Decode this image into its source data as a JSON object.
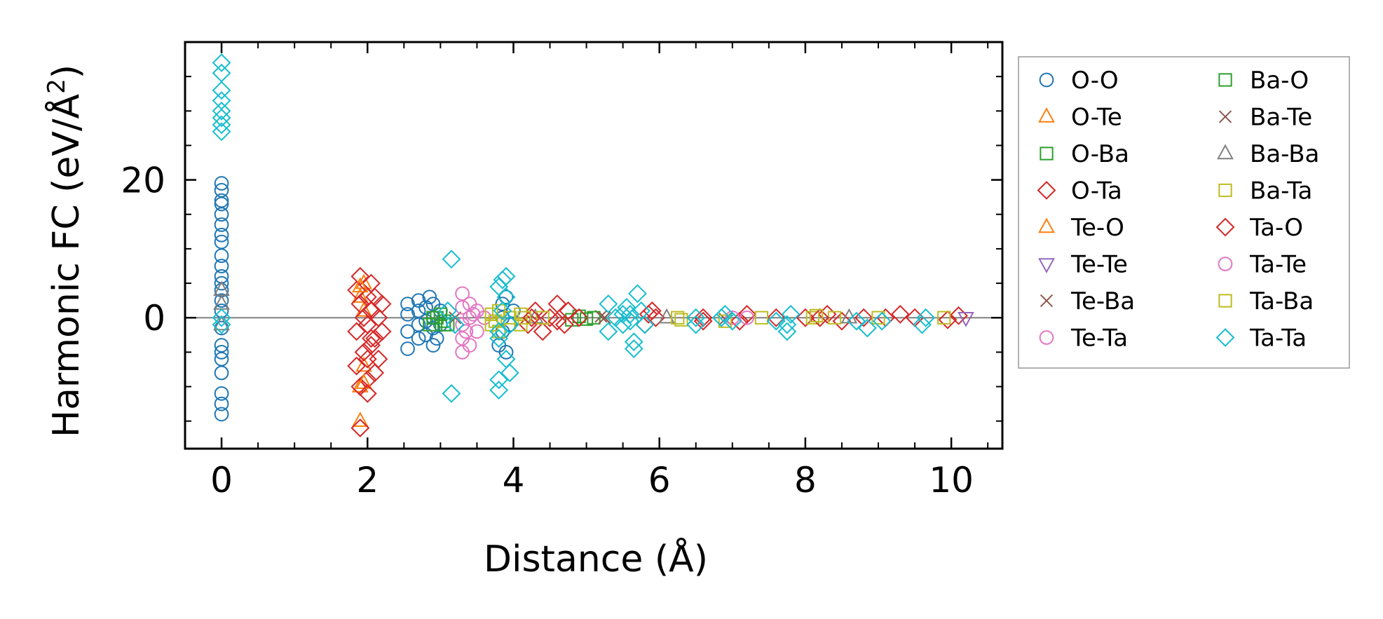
{
  "chart_data": {
    "type": "scatter",
    "title": "",
    "xlabel": "Distance (Å)",
    "ylabel_main": "Harmonic FC (eV/Å",
    "ylabel_sup": "2",
    "ylabel_close": ")",
    "xlim": [
      -0.5,
      10.7
    ],
    "ylim": [
      -19,
      40
    ],
    "xticks": [
      0,
      2,
      4,
      6,
      8,
      10
    ],
    "xtick_labels": [
      "0",
      "2",
      "4",
      "6",
      "8",
      "10"
    ],
    "yticks": [
      0,
      20
    ],
    "ytick_labels": [
      "0",
      "20"
    ],
    "x_minor_step": 0.5,
    "y_minor_step": 5,
    "zero_line": {
      "y": 0,
      "color": "#808080"
    },
    "legend_position": "outside-right",
    "series": [
      {
        "name": "O-O",
        "marker": "circle",
        "color": "#1f77b4",
        "points": [
          [
            0,
            -14
          ],
          [
            0,
            -12.5
          ],
          [
            0,
            -11
          ],
          [
            0,
            -8
          ],
          [
            0,
            -6
          ],
          [
            0,
            -5
          ],
          [
            0,
            -4
          ],
          [
            0,
            -1.5
          ],
          [
            0,
            1
          ],
          [
            0,
            2.5
          ],
          [
            0,
            4
          ],
          [
            0,
            5
          ],
          [
            0,
            6
          ],
          [
            0,
            7.5
          ],
          [
            0,
            9
          ],
          [
            0,
            11
          ],
          [
            0,
            12
          ],
          [
            0,
            13.5
          ],
          [
            0,
            15
          ],
          [
            0,
            16.5
          ],
          [
            0,
            17
          ],
          [
            0,
            18.5
          ],
          [
            0,
            19.5
          ],
          [
            2.55,
            -4.5
          ],
          [
            2.55,
            -2
          ],
          [
            2.55,
            0.5
          ],
          [
            2.55,
            2
          ],
          [
            2.7,
            -3
          ],
          [
            2.7,
            -1
          ],
          [
            2.7,
            1
          ],
          [
            2.7,
            2.5
          ],
          [
            2.8,
            -2.5
          ],
          [
            2.8,
            -0.5
          ],
          [
            2.8,
            1.5
          ],
          [
            2.85,
            3
          ],
          [
            2.9,
            -4
          ],
          [
            2.9,
            -1.5
          ],
          [
            2.9,
            0
          ],
          [
            2.9,
            2
          ],
          [
            2.95,
            -3
          ],
          [
            3.0,
            1
          ],
          [
            3.0,
            -1
          ],
          [
            3.8,
            -4
          ],
          [
            3.85,
            -2
          ],
          [
            3.85,
            0
          ],
          [
            3.85,
            2
          ],
          [
            3.9,
            -5
          ],
          [
            3.9,
            3
          ],
          [
            3.95,
            -1
          ],
          [
            4.0,
            1
          ]
        ]
      },
      {
        "name": "O-Te",
        "marker": "triangle-up",
        "color": "#ff7f0e",
        "points": [
          [
            1.9,
            -15
          ],
          [
            1.9,
            -10
          ],
          [
            1.95,
            -7
          ],
          [
            1.95,
            5
          ],
          [
            1.9,
            3
          ],
          [
            1.95,
            1
          ]
        ]
      },
      {
        "name": "O-Ba",
        "marker": "square",
        "color": "#2ca02c",
        "points": [
          [
            2.85,
            -1
          ],
          [
            2.95,
            0
          ],
          [
            3.05,
            -0.5
          ],
          [
            3.0,
            0.5
          ],
          [
            3.1,
            -1
          ],
          [
            4.8,
            -0.3
          ],
          [
            4.9,
            0.2
          ],
          [
            5.0,
            -0.2
          ]
        ]
      },
      {
        "name": "O-Ta",
        "marker": "diamond",
        "color": "#d62728",
        "points": [
          [
            1.9,
            -16
          ],
          [
            1.9,
            -10
          ],
          [
            1.85,
            -7
          ],
          [
            1.95,
            -5
          ],
          [
            1.85,
            -2
          ],
          [
            1.95,
            0
          ],
          [
            1.9,
            2
          ],
          [
            1.85,
            4
          ],
          [
            1.9,
            6
          ],
          [
            2.0,
            -9
          ],
          [
            2.0,
            -6
          ],
          [
            2.05,
            -4
          ],
          [
            2.0,
            -1
          ],
          [
            2.05,
            1
          ],
          [
            2.0,
            3
          ],
          [
            2.05,
            5
          ],
          [
            2.1,
            -3
          ],
          [
            2.15,
            0
          ],
          [
            2.15,
            -6
          ],
          [
            2.2,
            2
          ],
          [
            2.1,
            -8
          ],
          [
            2.2,
            -2
          ],
          [
            4.2,
            -1
          ],
          [
            4.3,
            1
          ],
          [
            4.4,
            -2
          ],
          [
            4.5,
            0
          ],
          [
            4.6,
            2
          ],
          [
            4.7,
            -1
          ],
          [
            4.75,
            1
          ],
          [
            4.9,
            0
          ],
          [
            5.8,
            -1
          ],
          [
            5.9,
            1
          ],
          [
            5.95,
            0
          ],
          [
            6.6,
            0
          ],
          [
            7.1,
            -0.5
          ],
          [
            7.2,
            0.5
          ],
          [
            7.6,
            0
          ],
          [
            8.0,
            0
          ],
          [
            8.3,
            0.5
          ],
          [
            8.5,
            -0.5
          ],
          [
            8.8,
            0
          ],
          [
            9.1,
            0
          ],
          [
            9.3,
            0.5
          ],
          [
            9.5,
            0
          ],
          [
            9.95,
            -0.3
          ],
          [
            10.1,
            0.3
          ]
        ]
      },
      {
        "name": "Te-O",
        "marker": "triangle-up",
        "color": "#ff7f0e",
        "points": [
          [
            1.95,
            -9.5
          ],
          [
            1.9,
            4.5
          ]
        ]
      },
      {
        "name": "Te-Te",
        "marker": "triangle-down",
        "color": "#9467bd",
        "points": [
          [
            10.2,
            0
          ]
        ]
      },
      {
        "name": "Te-Ba",
        "marker": "x",
        "color": "#8c564b",
        "points": [
          [
            3.2,
            0
          ],
          [
            5.2,
            0.2
          ],
          [
            6.9,
            -0.2
          ]
        ]
      },
      {
        "name": "Te-Ta",
        "marker": "circle",
        "color": "#e377c2",
        "points": [
          [
            3.3,
            -5
          ],
          [
            3.3,
            -3
          ],
          [
            3.3,
            -1
          ],
          [
            3.3,
            1.5
          ],
          [
            3.3,
            3.5
          ],
          [
            3.4,
            -4
          ],
          [
            3.4,
            0
          ],
          [
            3.4,
            2
          ],
          [
            3.5,
            -2
          ],
          [
            3.5,
            1
          ],
          [
            3.6,
            0
          ],
          [
            7.0,
            0
          ],
          [
            7.2,
            0
          ]
        ]
      },
      {
        "name": "Ba-O",
        "marker": "square",
        "color": "#2ca02c",
        "points": [
          [
            2.9,
            0
          ],
          [
            3.05,
            -1
          ],
          [
            5.1,
            0
          ]
        ]
      },
      {
        "name": "Ba-Te",
        "marker": "x",
        "color": "#8c564b",
        "points": [
          [
            5.25,
            0
          ]
        ]
      },
      {
        "name": "Ba-Ba",
        "marker": "triangle-up",
        "color": "#7f7f7f",
        "points": [
          [
            0,
            4
          ],
          [
            0,
            2
          ],
          [
            0,
            -1
          ],
          [
            4.3,
            0
          ],
          [
            6.1,
            0
          ],
          [
            8.6,
            0
          ]
        ]
      },
      {
        "name": "Ba-Ta",
        "marker": "square",
        "color": "#bcbd22",
        "points": [
          [
            3.7,
            -1
          ],
          [
            3.7,
            0.5
          ],
          [
            3.8,
            -2
          ],
          [
            3.8,
            1
          ],
          [
            3.95,
            0
          ],
          [
            4.1,
            -1
          ],
          [
            4.1,
            0.5
          ],
          [
            4.4,
            0
          ],
          [
            6.25,
            0
          ],
          [
            6.9,
            -0.5
          ],
          [
            7.4,
            0
          ],
          [
            8.1,
            0
          ],
          [
            8.4,
            0
          ],
          [
            9.0,
            0
          ],
          [
            9.9,
            0
          ]
        ]
      },
      {
        "name": "Ta-O",
        "marker": "diamond",
        "color": "#d62728",
        "points": [
          [
            2.0,
            -11
          ],
          [
            2.05,
            -3
          ],
          [
            2.1,
            3
          ],
          [
            4.25,
            0
          ],
          [
            4.6,
            -0.5
          ],
          [
            5.85,
            0.5
          ],
          [
            6.6,
            -0.5
          ],
          [
            8.2,
            0
          ]
        ]
      },
      {
        "name": "Ta-Te",
        "marker": "circle",
        "color": "#e377c2",
        "points": [
          [
            3.35,
            -2
          ],
          [
            3.45,
            0.5
          ]
        ]
      },
      {
        "name": "Ta-Ba",
        "marker": "square",
        "color": "#bcbd22",
        "points": [
          [
            3.75,
            -0.5
          ],
          [
            4.15,
            0
          ],
          [
            6.3,
            -0.3
          ],
          [
            8.15,
            0.3
          ]
        ]
      },
      {
        "name": "Ta-Ta",
        "marker": "diamond",
        "color": "#17becf",
        "points": [
          [
            0,
            37
          ],
          [
            0,
            35.5
          ],
          [
            0,
            33
          ],
          [
            0,
            31.5
          ],
          [
            0,
            30
          ],
          [
            0,
            29
          ],
          [
            0,
            28
          ],
          [
            0,
            27
          ],
          [
            0,
            0
          ],
          [
            0,
            -1
          ],
          [
            3.15,
            8.5
          ],
          [
            3.15,
            -11
          ],
          [
            3.1,
            1
          ],
          [
            3.2,
            -1
          ],
          [
            3.8,
            -10.5
          ],
          [
            3.8,
            -9
          ],
          [
            3.8,
            -3
          ],
          [
            3.8,
            4.5
          ],
          [
            3.85,
            5.5
          ],
          [
            3.9,
            6
          ],
          [
            3.9,
            -6
          ],
          [
            3.95,
            -8
          ],
          [
            3.9,
            3
          ],
          [
            3.95,
            -1
          ],
          [
            3.85,
            1
          ],
          [
            3.8,
            -2
          ],
          [
            5.3,
            -2
          ],
          [
            5.3,
            2
          ],
          [
            5.4,
            0
          ],
          [
            5.5,
            -1
          ],
          [
            5.55,
            1.5
          ],
          [
            5.6,
            -0.5
          ],
          [
            5.65,
            -4.5
          ],
          [
            5.65,
            -3.5
          ],
          [
            5.7,
            3.5
          ],
          [
            5.75,
            1
          ],
          [
            5.8,
            -1
          ],
          [
            5.6,
            0.5
          ],
          [
            5.5,
            0.5
          ],
          [
            6.5,
            0
          ],
          [
            6.5,
            -1
          ],
          [
            6.85,
            0
          ],
          [
            6.9,
            0.5
          ],
          [
            7.0,
            -0.5
          ],
          [
            7.6,
            -0.5
          ],
          [
            7.75,
            -1
          ],
          [
            7.8,
            0.5
          ],
          [
            7.75,
            -2
          ],
          [
            8.7,
            -0.5
          ],
          [
            8.85,
            -1.5
          ],
          [
            9.05,
            -0.5
          ],
          [
            9.6,
            -1
          ],
          [
            9.65,
            0
          ]
        ]
      }
    ]
  }
}
